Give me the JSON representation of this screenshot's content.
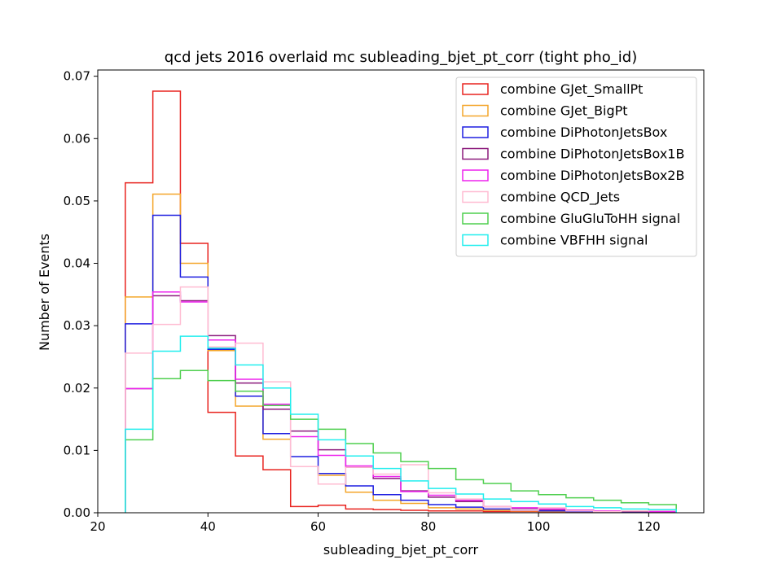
{
  "chart_data": {
    "type": "histogram-step",
    "title": "qcd jets 2016 overlaid mc subleading_bjet_pt_corr (tight pho_id)",
    "xlabel": "subleading_bjet_pt_corr",
    "ylabel": "Number of Events",
    "xlim": [
      20,
      130
    ],
    "ylim": [
      0,
      0.071
    ],
    "xticks": [
      20,
      40,
      60,
      80,
      100,
      120
    ],
    "xtick_labels": [
      "20",
      "40",
      "60",
      "80",
      "100",
      "120"
    ],
    "yticks": [
      0.0,
      0.01,
      0.02,
      0.03,
      0.04,
      0.05,
      0.06,
      0.07
    ],
    "ytick_labels": [
      "0.00",
      "0.01",
      "0.02",
      "0.03",
      "0.04",
      "0.05",
      "0.06",
      "0.07"
    ],
    "legend_position": "top-right",
    "bin_edges": [
      25,
      30,
      35,
      40,
      45,
      50,
      55,
      60,
      65,
      70,
      75,
      80,
      85,
      90,
      95,
      100,
      105,
      110,
      115,
      120,
      125
    ],
    "series": [
      {
        "name": "combine GJet_SmallPt",
        "color": "#e8231f",
        "values": [
          0.0529,
          0.0676,
          0.0432,
          0.0161,
          0.0091,
          0.0069,
          0.001,
          0.0012,
          0.0006,
          0.0005,
          0.0004,
          0.0003,
          0.0003,
          0.0002,
          0.0002,
          0.0001,
          0.0001,
          0.0001,
          0.0001,
          0.0001
        ]
      },
      {
        "name": "combine GJet_BigPt",
        "color": "#f4a62a",
        "values": [
          0.0346,
          0.0511,
          0.04,
          0.026,
          0.0171,
          0.0118,
          0.0074,
          0.006,
          0.0033,
          0.002,
          0.0015,
          0.0008,
          0.0006,
          0.0004,
          0.0003,
          0.0002,
          0.0002,
          0.0001,
          0.0001,
          0.0001
        ]
      },
      {
        "name": "combine DiPhotonJetsBox",
        "color": "#1f1fe0",
        "values": [
          0.0303,
          0.0477,
          0.0378,
          0.0262,
          0.0187,
          0.0127,
          0.009,
          0.0063,
          0.0043,
          0.0029,
          0.002,
          0.0013,
          0.0009,
          0.0006,
          0.0004,
          0.0003,
          0.0002,
          0.0002,
          0.0001,
          0.0001
        ]
      },
      {
        "name": "combine DiPhotonJetsBox1B",
        "color": "#8b1a7c",
        "values": [
          0.0199,
          0.0348,
          0.034,
          0.0284,
          0.0208,
          0.0166,
          0.0131,
          0.0101,
          0.0073,
          0.0055,
          0.0035,
          0.0025,
          0.0018,
          0.001,
          0.0007,
          0.0005,
          0.0004,
          0.0003,
          0.0002,
          0.0001
        ]
      },
      {
        "name": "combine DiPhotonJetsBox2B",
        "color": "#ee22ee",
        "values": [
          0.0199,
          0.0354,
          0.0338,
          0.0277,
          0.0214,
          0.0174,
          0.0122,
          0.0092,
          0.0075,
          0.0058,
          0.0034,
          0.0028,
          0.002,
          0.001,
          0.0008,
          0.0006,
          0.0004,
          0.0003,
          0.0003,
          0.0002
        ]
      },
      {
        "name": "combine QCD_Jets",
        "color": "#ffbcd2",
        "values": [
          0.0256,
          0.0302,
          0.0362,
          0.0266,
          0.0272,
          0.021,
          0.0074,
          0.0046,
          0.0073,
          0.0062,
          0.0077,
          0.0032,
          0.0022,
          0.001,
          0.0004,
          0.0008,
          0.0003,
          0.0002,
          0.0003,
          0.0004
        ]
      },
      {
        "name": "combine GluGluToHH signal",
        "color": "#4fcf4f",
        "values": [
          0.0117,
          0.0215,
          0.0228,
          0.0212,
          0.0195,
          0.0172,
          0.015,
          0.0134,
          0.0111,
          0.0096,
          0.0082,
          0.0071,
          0.0053,
          0.0047,
          0.0035,
          0.0029,
          0.0024,
          0.002,
          0.0016,
          0.0013
        ]
      },
      {
        "name": "combine VBFHH signal",
        "color": "#22eeee",
        "values": [
          0.0134,
          0.0259,
          0.0283,
          0.0264,
          0.0237,
          0.02,
          0.0158,
          0.0117,
          0.0091,
          0.0071,
          0.0051,
          0.0039,
          0.003,
          0.0022,
          0.0018,
          0.0014,
          0.001,
          0.0008,
          0.0006,
          0.0005
        ]
      }
    ]
  }
}
